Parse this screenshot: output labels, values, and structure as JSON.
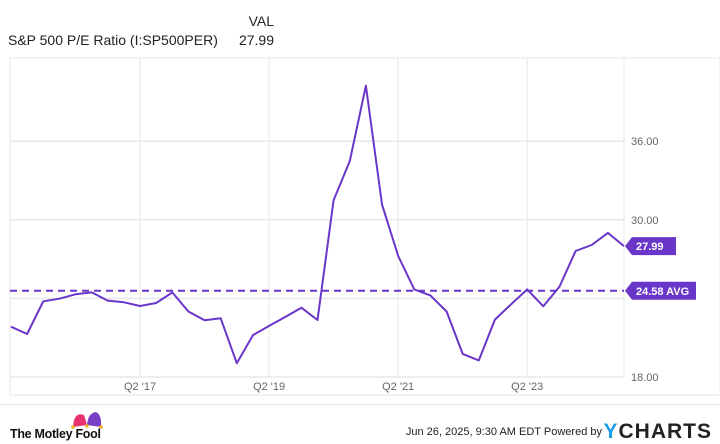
{
  "header": {
    "series_label": "S&P 500 P/E Ratio (I:SP500PER)",
    "val_header": "VAL",
    "val": "27.99"
  },
  "chart_data": {
    "type": "line",
    "title": "",
    "xlabel": "",
    "ylabel": "",
    "x": [
      "Q2 '15",
      "Q3 '15",
      "Q4 '15",
      "Q1 '16",
      "Q2 '16",
      "Q3 '16",
      "Q4 '16",
      "Q1 '17",
      "Q2 '17",
      "Q3 '17",
      "Q4 '17",
      "Q1 '18",
      "Q2 '18",
      "Q3 '18",
      "Q4 '18",
      "Q1 '19",
      "Q2 '19",
      "Q3 '19",
      "Q4 '19",
      "Q1 '20",
      "Q2 '20",
      "Q3 '20",
      "Q4 '20",
      "Q1 '21",
      "Q2 '21",
      "Q3 '21",
      "Q4 '21",
      "Q1 '22",
      "Q2 '22",
      "Q3 '22",
      "Q4 '22",
      "Q1 '23",
      "Q2 '23",
      "Q3 '23",
      "Q4 '23",
      "Q1 '24",
      "Q2 '24",
      "Q3 '24",
      "Q4 '24"
    ],
    "series": [
      {
        "values": [
          21.84,
          21.28,
          23.78,
          23.98,
          24.31,
          24.46,
          23.83,
          23.7,
          23.42,
          23.65,
          24.46,
          23.0,
          22.33,
          22.48,
          19.05,
          21.2,
          21.9,
          22.58,
          23.29,
          22.35,
          31.49,
          34.49,
          40.24,
          31.18,
          27.24,
          24.69,
          24.23,
          23.0,
          19.76,
          19.27,
          22.38,
          23.55,
          24.69,
          23.4,
          24.9,
          27.62,
          28.08,
          29.0,
          27.99
        ]
      }
    ],
    "average": {
      "value": 24.58,
      "label": "24.58 AVG"
    },
    "last_label": "27.99",
    "x_ticks": [
      "Q2 '17",
      "Q2 '19",
      "Q2 '21",
      "Q2 '23"
    ],
    "y_ticks": [
      18,
      24,
      30,
      36
    ],
    "y_tick_labels": [
      "18.00",
      "",
      "30.00",
      "36.00"
    ],
    "ylim": [
      18,
      42.2
    ],
    "grid": true,
    "colors": {
      "line": "#6a35c9",
      "label_bg": "#6a35c9",
      "grid": "#e8e8e8",
      "axis_text": "#666666"
    }
  },
  "footer": {
    "brand": "The Motley Fool",
    "timestamp": "Jun 26, 2025, 9:30 AM EDT",
    "powered_by": "Powered by",
    "ycharts_y": "Y",
    "ycharts_rest": "CHARTS"
  }
}
